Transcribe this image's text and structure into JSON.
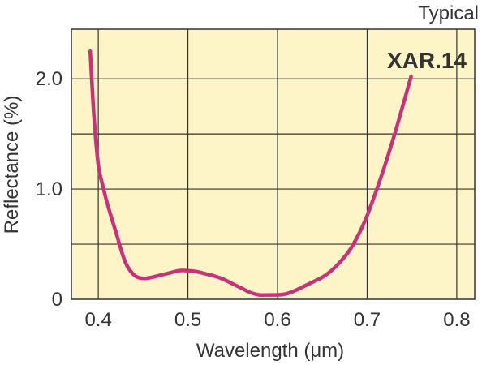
{
  "chart_data": {
    "type": "line",
    "title": "",
    "note": "Typical",
    "xlabel": "Wavelength (μm)",
    "ylabel": "Reflectance (%)",
    "xlim": [
      0.37,
      0.82
    ],
    "xticks": [
      0.4,
      0.5,
      0.6,
      0.7,
      0.8
    ],
    "xtick_labels": [
      "0.4",
      "0.5",
      "0.6",
      "0.7",
      "0.8"
    ],
    "ylim": [
      0,
      2.45
    ],
    "yticks": [
      0,
      1.0,
      2.0
    ],
    "ytick_labels": [
      "0",
      "1.0",
      "2.0"
    ],
    "ygrid": [
      0.5,
      1.0,
      1.5,
      2.0
    ],
    "grid": true,
    "colors": {
      "plot_background": "#fdf5c8",
      "grid": "#333333",
      "line": "#c8327a"
    },
    "series": [
      {
        "name": "XAR.14",
        "x": [
          0.391,
          0.395,
          0.4,
          0.405,
          0.41,
          0.42,
          0.43,
          0.44,
          0.45,
          0.46,
          0.47,
          0.48,
          0.49,
          0.5,
          0.51,
          0.52,
          0.53,
          0.54,
          0.55,
          0.56,
          0.57,
          0.58,
          0.59,
          0.6,
          0.61,
          0.62,
          0.63,
          0.64,
          0.65,
          0.66,
          0.67,
          0.68,
          0.69,
          0.7,
          0.71,
          0.72,
          0.73,
          0.74,
          0.749
        ],
        "y": [
          2.25,
          1.68,
          1.22,
          1.03,
          0.87,
          0.6,
          0.34,
          0.22,
          0.19,
          0.2,
          0.22,
          0.24,
          0.26,
          0.26,
          0.25,
          0.23,
          0.21,
          0.18,
          0.14,
          0.1,
          0.06,
          0.04,
          0.04,
          0.04,
          0.05,
          0.08,
          0.12,
          0.16,
          0.2,
          0.26,
          0.34,
          0.44,
          0.58,
          0.76,
          0.98,
          1.22,
          1.48,
          1.76,
          2.02
        ]
      }
    ]
  }
}
